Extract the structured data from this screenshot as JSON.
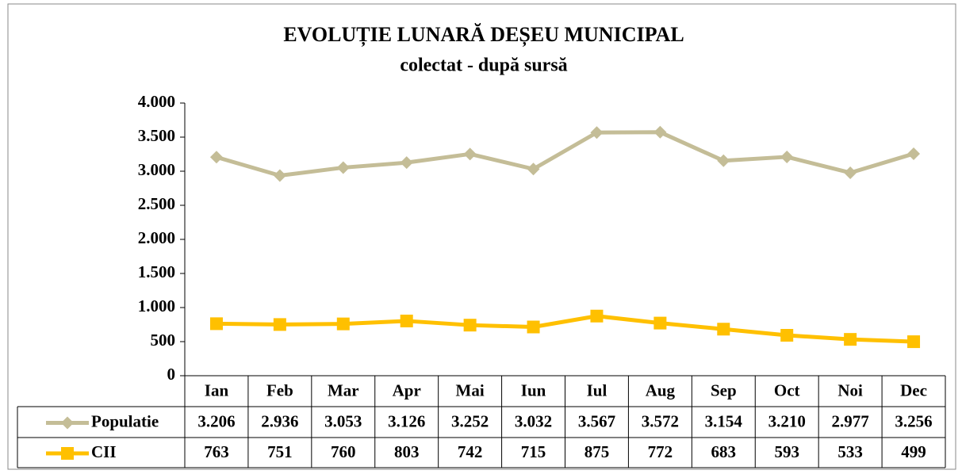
{
  "chart_data": {
    "type": "line",
    "title": "EVOLUȚIE LUNARĂ DEȘEU MUNICIPAL",
    "subtitle": "colectat - după sursă",
    "categories": [
      "Ian",
      "Feb",
      "Mar",
      "Apr",
      "Mai",
      "Iun",
      "Iul",
      "Aug",
      "Sep",
      "Oct",
      "Noi",
      "Dec"
    ],
    "series": [
      {
        "name": "Populatie",
        "color": "#c4bd97",
        "marker": "diamond",
        "values": [
          3206,
          2936,
          3053,
          3126,
          3252,
          3032,
          3567,
          3572,
          3154,
          3210,
          2977,
          3256
        ],
        "value_labels": [
          "3.206",
          "2.936",
          "3.053",
          "3.126",
          "3.252",
          "3.032",
          "3.567",
          "3.572",
          "3.154",
          "3.210",
          "2.977",
          "3.256"
        ]
      },
      {
        "name": "CII",
        "color": "#ffc000",
        "marker": "square",
        "values": [
          763,
          751,
          760,
          803,
          742,
          715,
          875,
          772,
          683,
          593,
          533,
          499
        ]
      }
    ],
    "ylim": [
      0,
      4000
    ],
    "yticks": [
      0,
      500,
      {
        "value": 1000,
        "label": "1.000"
      },
      {
        "value": 1500,
        "label": "1.500"
      },
      {
        "value": 2000,
        "label": "2.000"
      },
      {
        "value": 2500,
        "label": "2.500"
      },
      {
        "value": 3000,
        "label": "3.000"
      },
      {
        "value": 3500,
        "label": "3.500"
      },
      {
        "value": 4000,
        "label": "4.000"
      }
    ],
    "grid": false,
    "data_table": true
  }
}
